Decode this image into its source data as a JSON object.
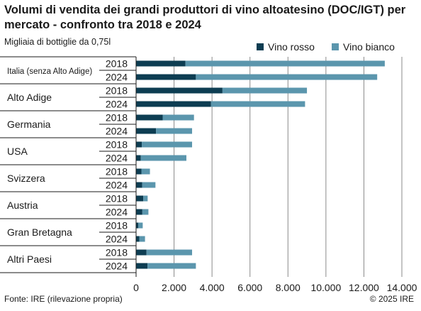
{
  "chart_data": {
    "type": "bar",
    "orientation": "horizontal",
    "stacked": true,
    "title": "Volumi di vendita dei grandi produttori di vino altoatesino (DOC/IGT) per mercato - confronto tra 2018 e 2024",
    "subtitle": "Migliaia di bottiglie da 0,75l",
    "xlabel": "",
    "ylabel": "",
    "xlim": [
      0,
      14000
    ],
    "xticks": [
      0,
      2000,
      4000,
      6000,
      8000,
      10000,
      12000,
      14000
    ],
    "xtick_labels": [
      "0",
      "2.000",
      "4.000",
      "6.000",
      "8.000",
      "10.000",
      "12.000",
      "14.000"
    ],
    "grid": "vertical",
    "legend_position": "top-right",
    "years": [
      "2018",
      "2024"
    ],
    "series": [
      {
        "name": "Vino rosso",
        "color": "#0d3d52"
      },
      {
        "name": "Vino bianco",
        "color": "#5b96ad"
      }
    ],
    "categories": [
      {
        "label": "Italia (senza Alto Adige)",
        "small": true,
        "rows": [
          {
            "year": "2018",
            "rosso": 2600,
            "bianco": 10500
          },
          {
            "year": "2024",
            "rosso": 3150,
            "bianco": 9550
          }
        ]
      },
      {
        "label": "Alto Adige",
        "rows": [
          {
            "year": "2018",
            "rosso": 4550,
            "bianco": 4450
          },
          {
            "year": "2024",
            "rosso": 3950,
            "bianco": 4950
          }
        ]
      },
      {
        "label": "Germania",
        "rows": [
          {
            "year": "2018",
            "rosso": 1400,
            "bianco": 1650
          },
          {
            "year": "2024",
            "rosso": 1050,
            "bianco": 1900
          }
        ]
      },
      {
        "label": "USA",
        "rows": [
          {
            "year": "2018",
            "rosso": 300,
            "bianco": 2650
          },
          {
            "year": "2024",
            "rosso": 250,
            "bianco": 2400
          }
        ]
      },
      {
        "label": "Svizzera",
        "rows": [
          {
            "year": "2018",
            "rosso": 280,
            "bianco": 450
          },
          {
            "year": "2024",
            "rosso": 320,
            "bianco": 700
          }
        ]
      },
      {
        "label": "Austria",
        "rows": [
          {
            "year": "2018",
            "rosso": 380,
            "bianco": 230
          },
          {
            "year": "2024",
            "rosso": 330,
            "bianco": 320
          }
        ]
      },
      {
        "label": "Gran Bretagna",
        "rows": [
          {
            "year": "2018",
            "rosso": 120,
            "bianco": 230
          },
          {
            "year": "2024",
            "rosso": 170,
            "bianco": 300
          }
        ]
      },
      {
        "label": "Altri Paesi",
        "rows": [
          {
            "year": "2018",
            "rosso": 550,
            "bianco": 2400
          },
          {
            "year": "2024",
            "rosso": 600,
            "bianco": 2550
          }
        ]
      }
    ]
  },
  "footer": {
    "source": "Fonte: IRE (rilevazione propria)",
    "copyright": "© 2025 IRE"
  }
}
